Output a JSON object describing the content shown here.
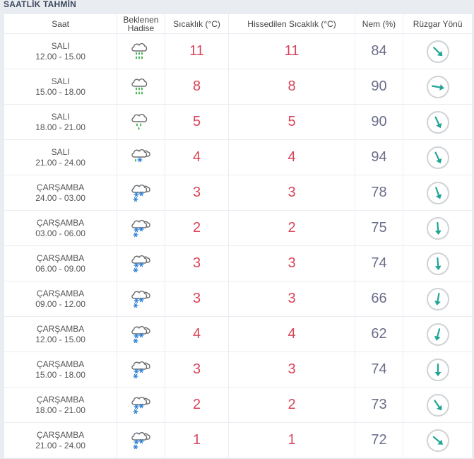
{
  "section_title": "SAATLİK TAHMİN",
  "headers": {
    "saat": "Saat",
    "hadise_line1": "Beklenen",
    "hadise_line2": "Hadise",
    "sicaklik": "Sıcaklık (°C)",
    "hissedilen": "Hissedilen Sıcaklık (°C)",
    "nem": "Nem (%)",
    "ruzgar": "Rüzgar Yönü"
  },
  "colors": {
    "temperature": "#d9445a",
    "humidity": "#6a6e8a",
    "wind_arrow": "#1fa594",
    "rain_drop": "#3cae4b",
    "snow_flake": "#2b7fd8"
  },
  "rows": [
    {
      "day": "SALI",
      "time": "12.00 - 15.00",
      "icon": "heavy-rain-icon",
      "temp": "11",
      "feels": "11",
      "humidity": "84",
      "wind_deg": 135
    },
    {
      "day": "SALI",
      "time": "15.00 - 18.00",
      "icon": "heavy-rain-icon",
      "temp": "8",
      "feels": "8",
      "humidity": "90",
      "wind_deg": 100
    },
    {
      "day": "SALI",
      "time": "18.00 - 21.00",
      "icon": "rain-icon",
      "temp": "5",
      "feels": "5",
      "humidity": "90",
      "wind_deg": 155
    },
    {
      "day": "SALI",
      "time": "21.00 - 24.00",
      "icon": "sleet-icon",
      "temp": "4",
      "feels": "4",
      "humidity": "94",
      "wind_deg": 155
    },
    {
      "day": "ÇARŞAMBA",
      "time": "24.00 - 03.00",
      "icon": "snow-icon",
      "temp": "3",
      "feels": "3",
      "humidity": "78",
      "wind_deg": 160
    },
    {
      "day": "ÇARŞAMBA",
      "time": "03.00 - 06.00",
      "icon": "snow-icon",
      "temp": "2",
      "feels": "2",
      "humidity": "75",
      "wind_deg": 175
    },
    {
      "day": "ÇARŞAMBA",
      "time": "06.00 - 09.00",
      "icon": "snow-icon",
      "temp": "3",
      "feels": "3",
      "humidity": "74",
      "wind_deg": 175
    },
    {
      "day": "ÇARŞAMBA",
      "time": "09.00 - 12.00",
      "icon": "snow-icon",
      "temp": "3",
      "feels": "3",
      "humidity": "66",
      "wind_deg": 190
    },
    {
      "day": "ÇARŞAMBA",
      "time": "12.00 - 15.00",
      "icon": "snow-icon",
      "temp": "4",
      "feels": "4",
      "humidity": "62",
      "wind_deg": 195
    },
    {
      "day": "ÇARŞAMBA",
      "time": "15.00 - 18.00",
      "icon": "snow-icon",
      "temp": "3",
      "feels": "3",
      "humidity": "74",
      "wind_deg": 180
    },
    {
      "day": "ÇARŞAMBA",
      "time": "18.00 - 21.00",
      "icon": "snow-icon",
      "temp": "2",
      "feels": "2",
      "humidity": "73",
      "wind_deg": 145
    },
    {
      "day": "ÇARŞAMBA",
      "time": "21.00 - 24.00",
      "icon": "snow-icon",
      "temp": "1",
      "feels": "1",
      "humidity": "72",
      "wind_deg": 130
    }
  ]
}
